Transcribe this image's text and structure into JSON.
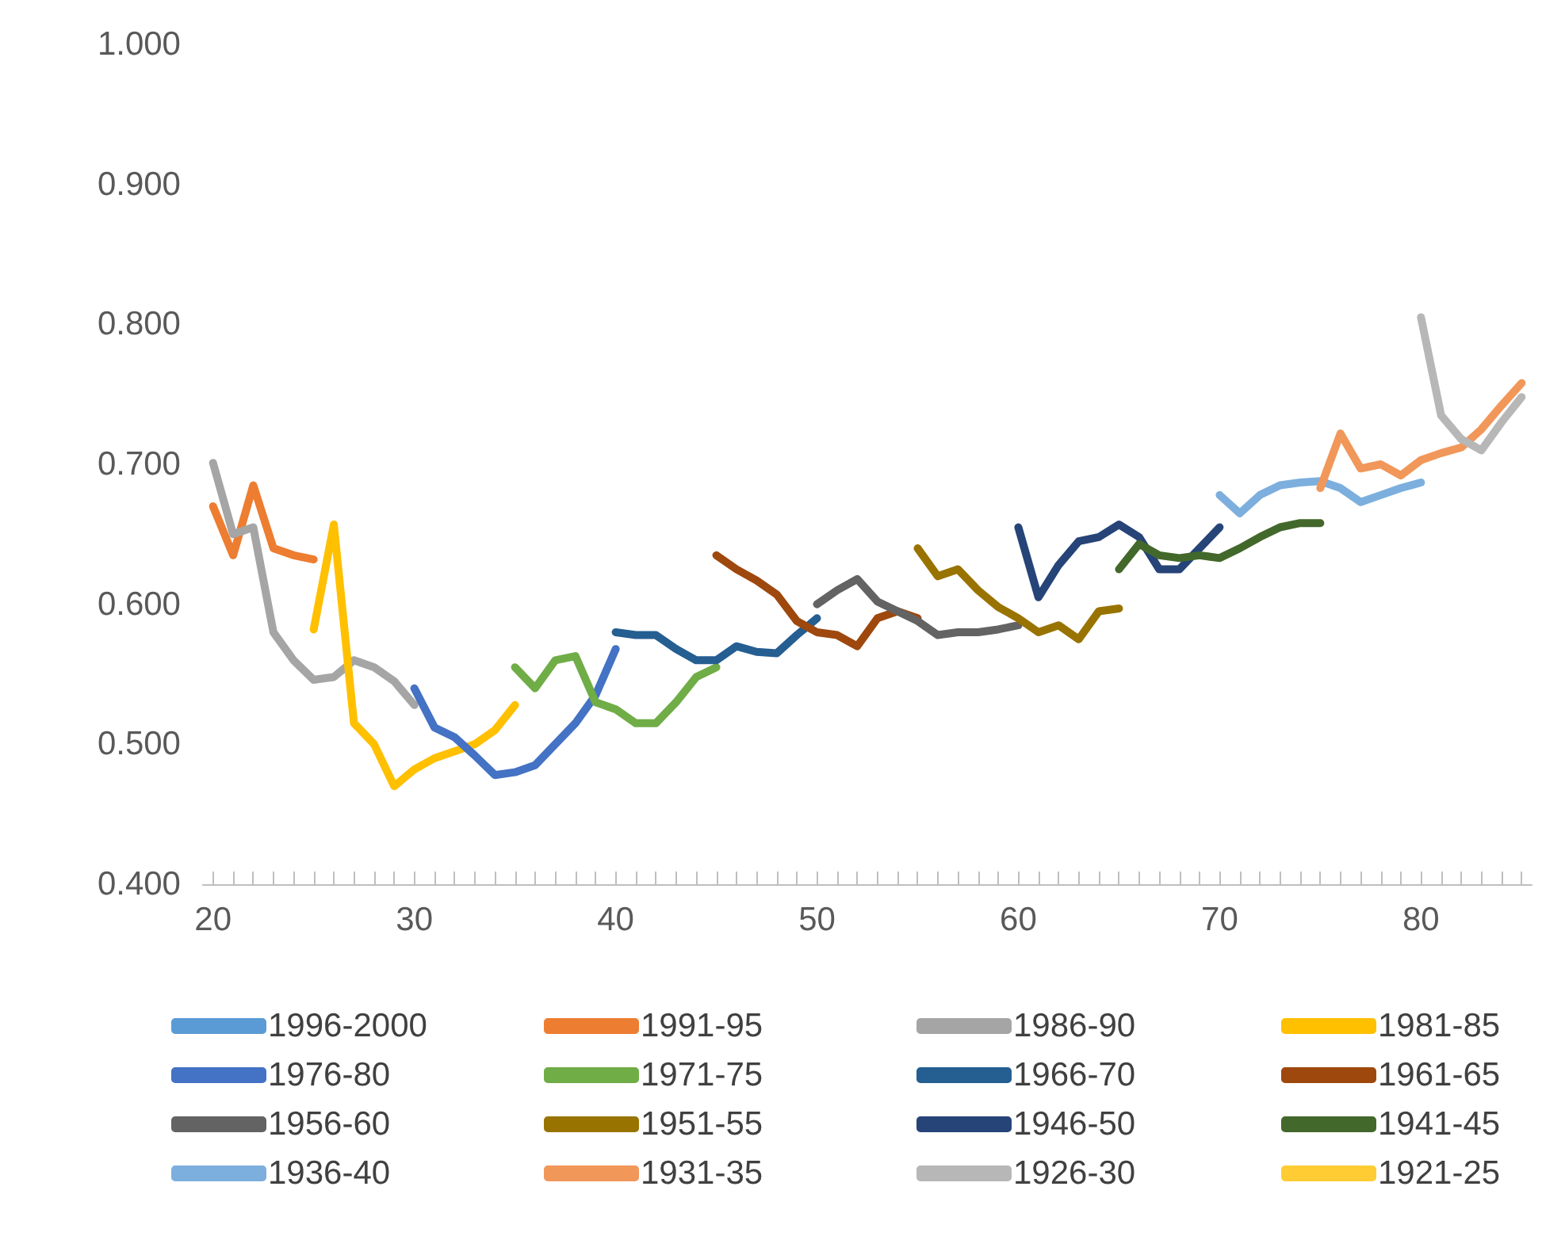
{
  "chart_data": {
    "type": "line",
    "xlim": [
      19.5,
      85.5
    ],
    "ylim": [
      0.4,
      1.0
    ],
    "xticks": [
      20,
      {
        "value": 21,
        "label": null
      },
      {
        "value": 22,
        "label": null
      },
      {
        "value": 23,
        "label": null
      },
      {
        "value": 24,
        "label": null
      },
      {
        "value": 25,
        "label": null
      },
      {
        "value": 26,
        "label": null
      },
      {
        "value": 27,
        "label": null
      },
      {
        "value": 28,
        "label": null
      },
      {
        "value": 29,
        "label": null
      },
      30,
      {
        "value": 31,
        "label": null
      },
      {
        "value": 32,
        "label": null
      },
      {
        "value": 33,
        "label": null
      },
      {
        "value": 34,
        "label": null
      },
      {
        "value": 35,
        "label": null
      },
      {
        "value": 36,
        "label": null
      },
      {
        "value": 37,
        "label": null
      },
      {
        "value": 38,
        "label": null
      },
      {
        "value": 39,
        "label": null
      },
      40,
      {
        "value": 41,
        "label": null
      },
      {
        "value": 42,
        "label": null
      },
      {
        "value": 43,
        "label": null
      },
      {
        "value": 44,
        "label": null
      },
      {
        "value": 45,
        "label": null
      },
      {
        "value": 46,
        "label": null
      },
      {
        "value": 47,
        "label": null
      },
      {
        "value": 48,
        "label": null
      },
      {
        "value": 49,
        "label": null
      },
      50,
      {
        "value": 51,
        "label": null
      },
      {
        "value": 52,
        "label": null
      },
      {
        "value": 53,
        "label": null
      },
      {
        "value": 54,
        "label": null
      },
      {
        "value": 55,
        "label": null
      },
      {
        "value": 56,
        "label": null
      },
      {
        "value": 57,
        "label": null
      },
      {
        "value": 58,
        "label": null
      },
      {
        "value": 59,
        "label": null
      },
      60,
      {
        "value": 61,
        "label": null
      },
      {
        "value": 62,
        "label": null
      },
      {
        "value": 63,
        "label": null
      },
      {
        "value": 64,
        "label": null
      },
      {
        "value": 65,
        "label": null
      },
      {
        "value": 66,
        "label": null
      },
      {
        "value": 67,
        "label": null
      },
      {
        "value": 68,
        "label": null
      },
      {
        "value": 69,
        "label": null
      },
      70,
      {
        "value": 71,
        "label": null
      },
      {
        "value": 72,
        "label": null
      },
      {
        "value": 73,
        "label": null
      },
      {
        "value": 74,
        "label": null
      },
      {
        "value": 75,
        "label": null
      },
      {
        "value": 76,
        "label": null
      },
      {
        "value": 77,
        "label": null
      },
      {
        "value": 78,
        "label": null
      },
      {
        "value": 79,
        "label": null
      },
      80,
      {
        "value": 81,
        "label": null
      },
      {
        "value": 82,
        "label": null
      },
      {
        "value": 83,
        "label": null
      },
      {
        "value": 84,
        "label": null
      },
      {
        "value": 85,
        "label": null
      }
    ],
    "yticks": [
      {
        "value": 0.4,
        "label": "0.400"
      },
      {
        "value": 0.5,
        "label": "0.500"
      },
      {
        "value": 0.6,
        "label": "0.600"
      },
      {
        "value": 0.7,
        "label": "0.700"
      },
      {
        "value": 0.8,
        "label": "0.800"
      },
      {
        "value": 0.9,
        "label": "0.900"
      },
      {
        "value": 1.0,
        "label": "1.000"
      }
    ],
    "grid": false,
    "legend": "bottom",
    "marker": "none",
    "line_style": "solid",
    "series": [
      {
        "name": "1996-2000",
        "color": "#5b9bd5"
      },
      {
        "name": "1991-95",
        "color": "#ed7d31",
        "x": [
          20,
          21,
          22,
          23,
          24,
          25
        ],
        "values": [
          0.67,
          0.635,
          0.685,
          0.64,
          0.635,
          0.632
        ]
      },
      {
        "name": "1986-90",
        "color": "#a5a5a5",
        "x": [
          20,
          21,
          22,
          23,
          24,
          25,
          26,
          27,
          28,
          29,
          30
        ],
        "values": [
          0.701,
          0.65,
          0.655,
          0.58,
          0.56,
          0.546,
          0.548,
          0.56,
          0.555,
          0.545,
          0.528
        ]
      },
      {
        "name": "1981-85",
        "color": "#ffc000",
        "x": [
          25,
          26,
          27,
          28,
          29,
          30,
          31,
          32,
          33,
          34,
          35
        ],
        "values": [
          0.582,
          0.657,
          0.515,
          0.5,
          0.47,
          0.482,
          0.49,
          0.495,
          0.5,
          0.51,
          0.528
        ]
      },
      {
        "name": "1976-80",
        "color": "#4472c4",
        "x": [
          30,
          31,
          32,
          33,
          34,
          35,
          36,
          37,
          38,
          39,
          40
        ],
        "values": [
          0.54,
          0.512,
          0.505,
          0.492,
          0.478,
          0.48,
          0.485,
          0.5,
          0.515,
          0.535,
          0.568
        ]
      },
      {
        "name": "1971-75",
        "color": "#70ad47",
        "x": [
          35,
          36,
          37,
          38,
          39,
          40,
          41,
          42,
          43,
          44,
          45
        ],
        "values": [
          0.555,
          0.54,
          0.56,
          0.563,
          0.53,
          0.525,
          0.515,
          0.515,
          0.53,
          0.548,
          0.555
        ]
      },
      {
        "name": "1966-70",
        "color": "#255e91",
        "x": [
          40,
          41,
          42,
          43,
          44,
          45,
          46,
          47,
          48,
          49,
          50
        ],
        "values": [
          0.58,
          0.578,
          0.578,
          0.568,
          0.56,
          0.56,
          0.57,
          0.566,
          0.565,
          0.578,
          0.59
        ]
      },
      {
        "name": "1961-65",
        "color": "#9e480e",
        "x": [
          45,
          46,
          47,
          48,
          49,
          50,
          51,
          52,
          53,
          54,
          55
        ],
        "values": [
          0.635,
          0.625,
          0.617,
          0.607,
          0.588,
          0.58,
          0.578,
          0.57,
          0.59,
          0.595,
          0.59
        ]
      },
      {
        "name": "1956-60",
        "color": "#636363",
        "x": [
          50,
          51,
          52,
          53,
          54,
          55,
          56,
          57,
          58,
          59,
          60
        ],
        "values": [
          0.6,
          0.61,
          0.618,
          0.602,
          0.595,
          0.588,
          0.578,
          0.58,
          0.58,
          0.582,
          0.585
        ]
      },
      {
        "name": "1951-55",
        "color": "#997300",
        "x": [
          55,
          56,
          57,
          58,
          59,
          60,
          61,
          62,
          63,
          64,
          65
        ],
        "values": [
          0.64,
          0.62,
          0.625,
          0.61,
          0.598,
          0.59,
          0.58,
          0.585,
          0.575,
          0.595,
          0.597
        ]
      },
      {
        "name": "1946-50",
        "color": "#264478",
        "x": [
          60,
          61,
          62,
          63,
          64,
          65,
          66,
          67,
          68,
          69,
          70
        ],
        "values": [
          0.655,
          0.605,
          0.628,
          0.645,
          0.648,
          0.657,
          0.648,
          0.625,
          0.625,
          0.64,
          0.655
        ]
      },
      {
        "name": "1941-45",
        "color": "#43682b",
        "x": [
          65,
          66,
          67,
          68,
          69,
          70,
          71,
          72,
          73,
          74,
          75
        ],
        "values": [
          0.625,
          0.643,
          0.635,
          0.633,
          0.635,
          0.633,
          0.64,
          0.648,
          0.655,
          0.658,
          0.658
        ]
      },
      {
        "name": "1936-40",
        "color": "#7cafdd",
        "x": [
          70,
          71,
          72,
          73,
          74,
          75,
          76,
          77,
          78,
          79,
          80
        ],
        "values": [
          0.678,
          0.665,
          0.678,
          0.685,
          0.687,
          0.688,
          0.683,
          0.673,
          0.678,
          0.683,
          0.687
        ]
      },
      {
        "name": "1931-35",
        "color": "#f1975a",
        "x": [
          75,
          76,
          77,
          78,
          79,
          80,
          81,
          82,
          83,
          84,
          85
        ],
        "values": [
          0.683,
          0.722,
          0.697,
          0.7,
          0.692,
          0.703,
          0.708,
          0.712,
          0.725,
          0.742,
          0.758
        ]
      },
      {
        "name": "1926-30",
        "color": "#b7b7b7",
        "x": [
          80,
          81,
          82,
          83,
          84,
          85
        ],
        "values": [
          0.805,
          0.735,
          0.718,
          0.71,
          0.73,
          0.748
        ]
      },
      {
        "name": "1921-25",
        "color": "#ffcd33"
      }
    ]
  }
}
